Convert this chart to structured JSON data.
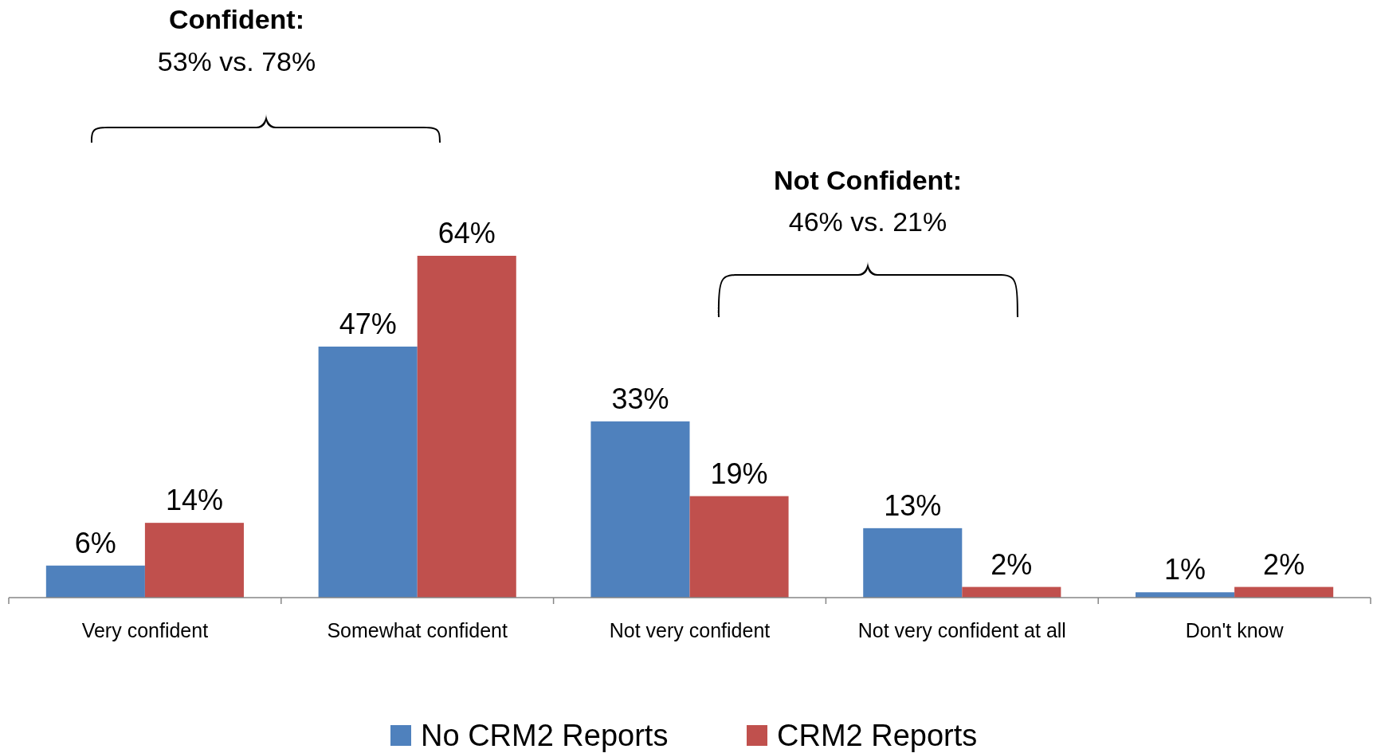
{
  "chart_data": {
    "type": "bar",
    "categories": [
      "Very confident",
      "Somewhat confident",
      "Not very confident",
      "Not very confident at all",
      "Don't know"
    ],
    "series": [
      {
        "name": "No CRM2 Reports",
        "color": "#4f81bd",
        "values": [
          6,
          47,
          33,
          13,
          1
        ],
        "value_labels": [
          "6%",
          "47%",
          "33%",
          "13%",
          "1%"
        ]
      },
      {
        "name": "CRM2 Reports",
        "color": "#c0504d",
        "values": [
          14,
          64,
          19,
          2,
          2
        ],
        "value_labels": [
          "14%",
          "64%",
          "19%",
          "2%",
          "2%"
        ]
      }
    ],
    "legend": "bottom",
    "annotations": [
      "Confident:",
      "53% vs. 78%",
      "Not Confident:",
      "46% vs. 21%"
    ]
  }
}
